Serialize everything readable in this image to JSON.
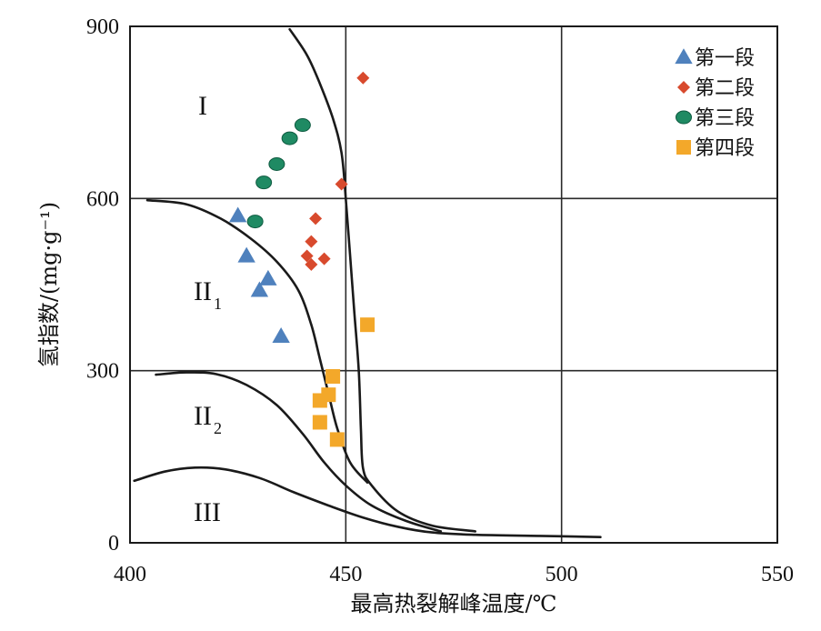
{
  "chart_data": {
    "type": "scatter",
    "xlabel": "最高热裂解峰温度/℃",
    "ylabel": "氢指数/(mg·g⁻¹)",
    "xlim": [
      400,
      550
    ],
    "ylim": [
      0,
      900
    ],
    "x_ticks": [
      "400",
      "450",
      "500",
      "550"
    ],
    "y_ticks": [
      "0",
      "300",
      "600",
      "900"
    ],
    "grid": true,
    "legend_position": "top-right",
    "regions": [
      {
        "main": "I",
        "sub": ""
      },
      {
        "main": "II",
        "sub": "1"
      },
      {
        "main": "II",
        "sub": "2"
      },
      {
        "main": "III",
        "sub": ""
      }
    ],
    "boundary_curves": [
      {
        "points": [
          [
            437,
            895
          ],
          [
            441,
            850
          ],
          [
            444,
            800
          ],
          [
            447,
            740
          ],
          [
            449,
            680
          ],
          [
            450,
            600
          ],
          [
            451,
            500
          ],
          [
            452,
            400
          ],
          [
            453,
            300
          ],
          [
            453.5,
            200
          ],
          [
            454,
            130
          ],
          [
            456,
            100
          ],
          [
            462,
            55
          ],
          [
            470,
            30
          ],
          [
            480,
            20
          ]
        ]
      },
      {
        "points": [
          [
            404,
            597
          ],
          [
            413,
            590
          ],
          [
            421,
            565
          ],
          [
            428,
            530
          ],
          [
            434,
            490
          ],
          [
            439,
            440
          ],
          [
            442,
            380
          ],
          [
            444,
            320
          ],
          [
            446,
            260
          ],
          [
            448,
            200
          ],
          [
            451,
            140
          ],
          [
            455,
            105
          ]
        ]
      },
      {
        "points": [
          [
            406,
            293
          ],
          [
            413,
            297
          ],
          [
            420,
            294
          ],
          [
            427,
            275
          ],
          [
            434,
            240
          ],
          [
            440,
            190
          ],
          [
            445,
            140
          ],
          [
            450,
            100
          ],
          [
            456,
            65
          ],
          [
            464,
            38
          ],
          [
            472,
            20
          ]
        ]
      },
      {
        "points": [
          [
            401,
            108
          ],
          [
            408,
            124
          ],
          [
            415,
            131
          ],
          [
            422,
            128
          ],
          [
            430,
            113
          ],
          [
            438,
            88
          ],
          [
            446,
            65
          ],
          [
            454,
            44
          ],
          [
            462,
            28
          ],
          [
            470,
            18
          ],
          [
            480,
            14
          ],
          [
            495,
            12
          ],
          [
            509,
            10
          ]
        ]
      }
    ],
    "series": [
      {
        "name": "第一段",
        "marker": "triangle",
        "color": "#4f81bd",
        "x": [
          425,
          427,
          430,
          432,
          435
        ],
        "y": [
          570,
          500,
          440,
          460,
          360
        ]
      },
      {
        "name": "第二段",
        "marker": "diamond",
        "color": "#d84a2d",
        "x": [
          454,
          449,
          443,
          442,
          445,
          441,
          442
        ],
        "y": [
          810,
          625,
          565,
          525,
          495,
          500,
          485
        ]
      },
      {
        "name": "第三段",
        "marker": "circle",
        "color": "#1f8a63",
        "x": [
          431,
          434,
          437,
          440,
          429
        ],
        "y": [
          628,
          660,
          705,
          728,
          560
        ]
      },
      {
        "name": "第四段",
        "marker": "square",
        "color": "#f3a82a",
        "x": [
          455,
          447,
          446,
          444,
          444,
          448
        ],
        "y": [
          380,
          290,
          258,
          248,
          210,
          180
        ]
      }
    ]
  }
}
